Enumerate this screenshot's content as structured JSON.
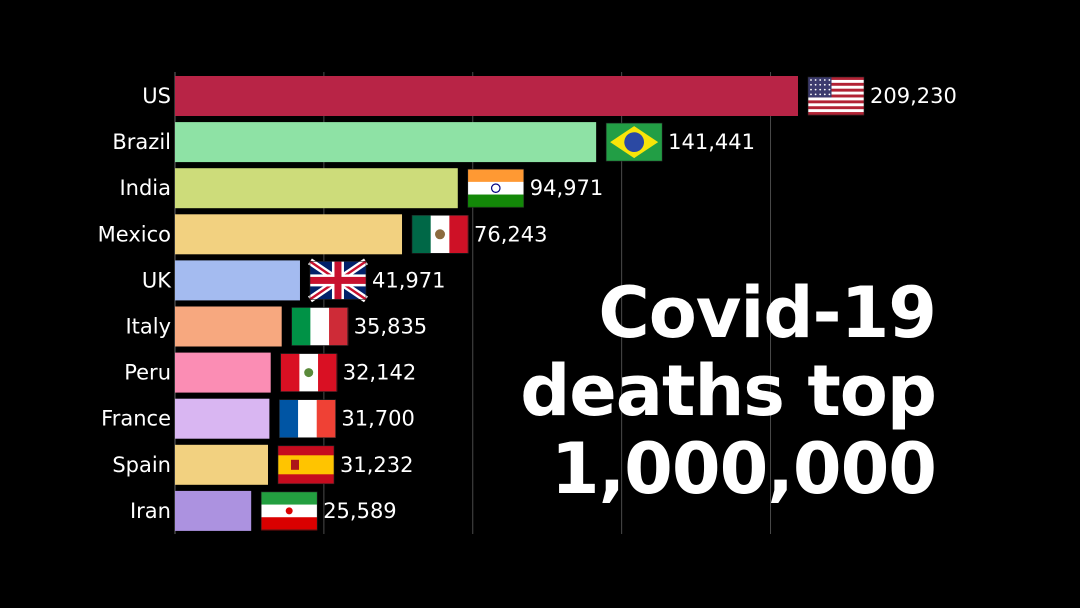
{
  "headline": {
    "line1": "Covid-19",
    "line2": "deaths top",
    "line3": "1,000,000"
  },
  "chart_data": {
    "type": "bar",
    "orientation": "horizontal",
    "categories": [
      "US",
      "Brazil",
      "India",
      "Mexico",
      "UK",
      "Italy",
      "Peru",
      "France",
      "Spain",
      "Iran"
    ],
    "values": [
      209230,
      141441,
      94971,
      76243,
      41971,
      35835,
      32142,
      31700,
      31232,
      25589
    ],
    "value_labels": [
      "209,230",
      "141,441",
      "94,971",
      "76,243",
      "41,971",
      "35,835",
      "32,142",
      "31,700",
      "31,232",
      "25,589"
    ],
    "colors": [
      "#b82446",
      "#8ee2a5",
      "#cddc7a",
      "#f2d180",
      "#a4bbf0",
      "#f7a87f",
      "#fb8db4",
      "#d9b6f2",
      "#f2d180",
      "#ac92e0"
    ],
    "flags": [
      "flag-us-icon",
      "flag-brazil-icon",
      "flag-india-icon",
      "flag-mexico-icon",
      "flag-uk-icon",
      "flag-italy-icon",
      "flag-peru-icon",
      "flag-france-icon",
      "flag-spain-icon",
      "flag-iran-icon"
    ],
    "xlim": [
      0,
      209230
    ],
    "gridlines": [
      50000,
      100000,
      150000,
      200000
    ],
    "grid": true,
    "legend": false,
    "title": "",
    "xlabel": "",
    "ylabel": ""
  }
}
